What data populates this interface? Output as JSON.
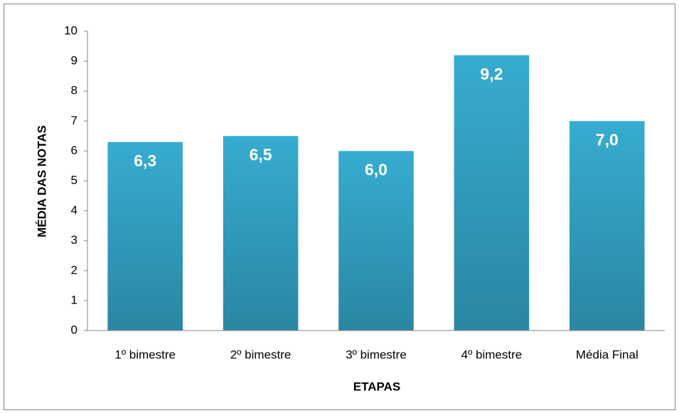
{
  "chart_data": {
    "type": "bar",
    "x_label": "ETAPAS",
    "y_label": "MÉDIA DAS NOTAS",
    "categories": [
      "1º bimestre",
      "2º bimestre",
      "3º bimestre",
      "4º bimestre",
      "Média Final"
    ],
    "values": [
      6.3,
      6.5,
      6.0,
      9.2,
      7.0
    ],
    "value_labels": [
      "6,3",
      "6,5",
      "6,0",
      "9,2",
      "7,0"
    ],
    "color": "#36acd0",
    "ylim": [
      0,
      10
    ],
    "yticks": [
      0,
      1,
      2,
      3,
      4,
      5,
      6,
      7,
      8,
      9,
      10
    ],
    "grid": false
  }
}
